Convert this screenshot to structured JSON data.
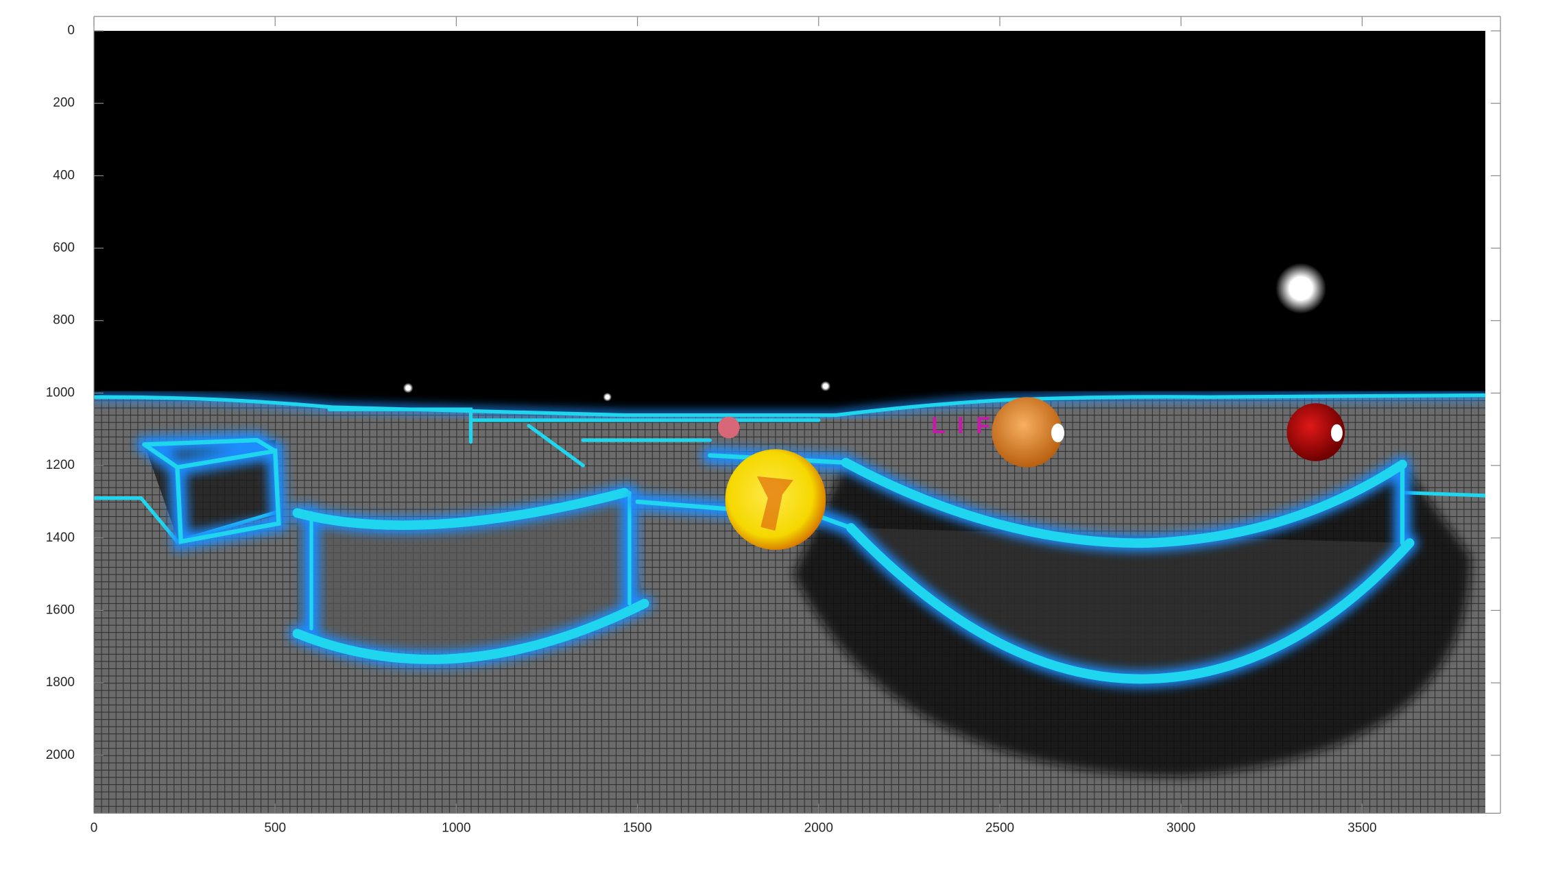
{
  "chart_data": {
    "type": "image",
    "xlim": [
      0,
      3840
    ],
    "ylim": [
      0,
      2160
    ],
    "y_reversed": true,
    "xticks": [
      0,
      500,
      1000,
      1500,
      2000,
      2500,
      3000,
      3500
    ],
    "yticks": [
      0,
      200,
      400,
      600,
      800,
      1000,
      1200,
      1400,
      1600,
      1800,
      2000
    ],
    "annotations": [
      "L I F"
    ]
  }
}
